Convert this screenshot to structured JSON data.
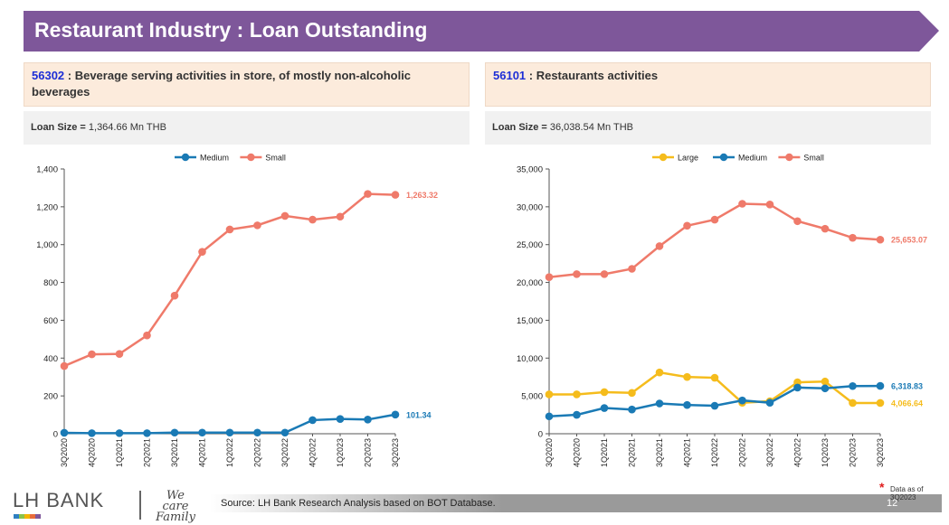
{
  "header": {
    "title": "Restaurant Industry : Loan Outstanding",
    "color": "#7e579a"
  },
  "panels": [
    {
      "code": "56302",
      "sector_label": " : Beverage serving activities in store, of mostly non-alcoholic beverages",
      "loan_size_label": "Loan Size = ",
      "loan_size_value": "1,364.66 Mn THB"
    },
    {
      "code": "56101",
      "sector_label": " : Restaurants activities",
      "loan_size_label": "Loan Size = ",
      "loan_size_value": "36,038.54 Mn THB"
    }
  ],
  "chart_data": [
    {
      "type": "line",
      "categories": [
        "3Q2020",
        "4Q2020",
        "1Q2021",
        "2Q2021",
        "3Q2021",
        "4Q2021",
        "1Q2022",
        "2Q2022",
        "3Q2022",
        "4Q2022",
        "1Q2023",
        "2Q2023",
        "3Q2023"
      ],
      "ylim": [
        0,
        1400
      ],
      "yticks": [
        "0",
        "200",
        "400",
        "600",
        "800",
        "1,000",
        "1,200",
        "1,400"
      ],
      "ytick_values": [
        0,
        200,
        400,
        600,
        800,
        1000,
        1200,
        1400
      ],
      "legend_position": "top",
      "series": [
        {
          "name": "Medium",
          "color": "#1a7ab5",
          "values": [
            5,
            3,
            3,
            3,
            6,
            6,
            6,
            6,
            6,
            72,
            78,
            75,
            101.34
          ],
          "end_label": "101.34"
        },
        {
          "name": "Small",
          "color": "#ef7a6a",
          "values": [
            358,
            420,
            422,
            520,
            730,
            962,
            1080,
            1102,
            1152,
            1132,
            1148,
            1268,
            1263.32
          ],
          "end_label": "1,263.32"
        }
      ]
    },
    {
      "type": "line",
      "categories": [
        "3Q2020",
        "4Q2020",
        "1Q2021",
        "2Q2021",
        "3Q2021",
        "4Q2021",
        "1Q2022",
        "2Q2022",
        "3Q2022",
        "4Q2022",
        "1Q2023",
        "2Q2023",
        "3Q2023"
      ],
      "ylim": [
        0,
        35000
      ],
      "yticks": [
        "0",
        "5,000",
        "10,000",
        "15,000",
        "20,000",
        "25,000",
        "30,000",
        "35,000"
      ],
      "ytick_values": [
        0,
        5000,
        10000,
        15000,
        20000,
        25000,
        30000,
        35000
      ],
      "legend_position": "top",
      "series": [
        {
          "name": "Large",
          "color": "#f5bc1c",
          "values": [
            5200,
            5200,
            5500,
            5400,
            8100,
            7500,
            7400,
            4100,
            4300,
            6800,
            6900,
            4066,
            4066.64
          ],
          "end_label": "4,066.64"
        },
        {
          "name": "Medium",
          "color": "#1a7ab5",
          "values": [
            2300,
            2500,
            3400,
            3200,
            4000,
            3800,
            3700,
            4400,
            4100,
            6100,
            6000,
            6300,
            6318.83
          ],
          "end_label": "6,318.83"
        },
        {
          "name": "Small",
          "color": "#ef7a6a",
          "values": [
            20700,
            21100,
            21100,
            21800,
            24800,
            27500,
            28300,
            30400,
            30300,
            28100,
            27100,
            25900,
            25653.07
          ],
          "end_label": "25,653.07"
        }
      ]
    }
  ],
  "footer": {
    "source": "Source: LH Bank Research Analysis based on BOT Database.",
    "page_number": "12",
    "data_note_marker": "*",
    "data_note": "Data as of 3Q2023",
    "logo_text": "LH BANK",
    "tagline_1": "We",
    "tagline_2": "care",
    "tagline_3": "Family"
  }
}
